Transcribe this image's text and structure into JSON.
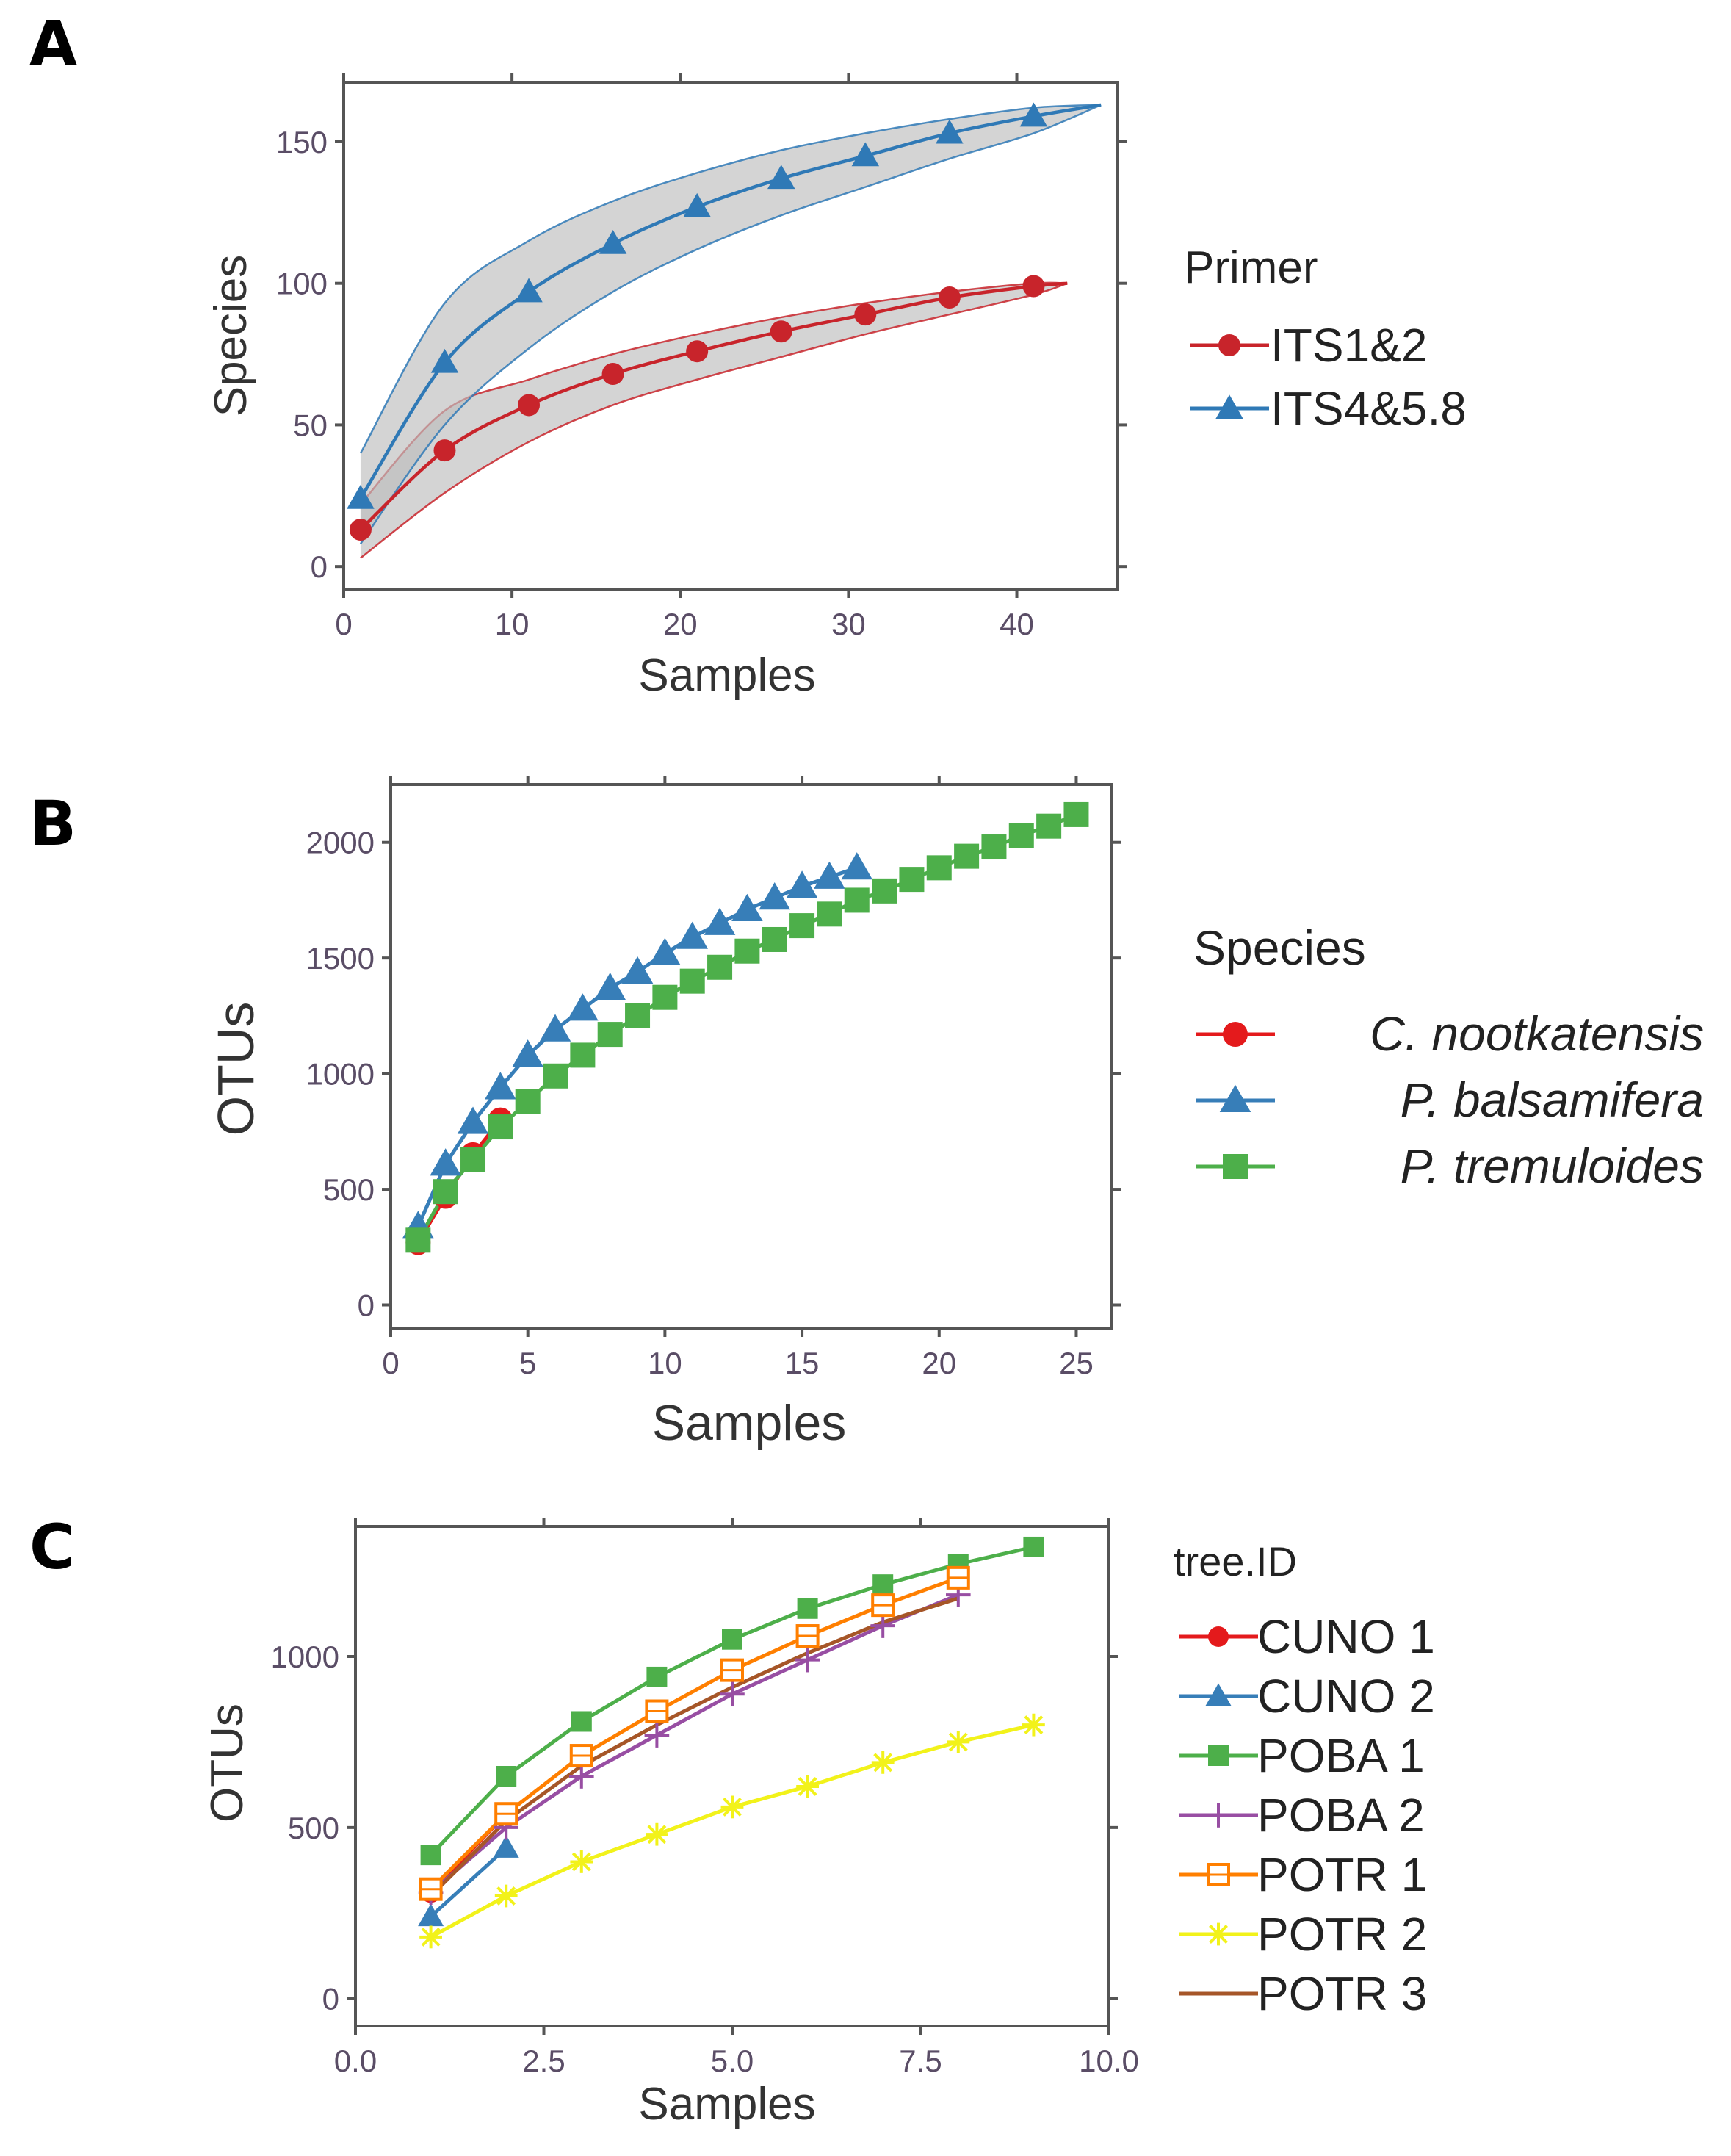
{
  "panels": {
    "a": {
      "label": "A"
    },
    "b": {
      "label": "B"
    },
    "c": {
      "label": "C"
    }
  },
  "chart_data": [
    {
      "panel": "A",
      "type": "line",
      "title": "",
      "xlabel": "Samples",
      "ylabel": "Species",
      "xlim": [
        0,
        46
      ],
      "ylim": [
        -8,
        171
      ],
      "xticks": [
        0,
        10,
        20,
        30,
        40
      ],
      "yticks": [
        0,
        50,
        100,
        150
      ],
      "grid": false,
      "legend": {
        "title": "Primer",
        "position": "right"
      },
      "series": [
        {
          "name": "ITS1&2",
          "color": "#c8242b",
          "marker": "circle",
          "x": [
            1,
            6,
            11,
            16,
            21,
            26,
            31,
            36,
            41
          ],
          "y": [
            13,
            41,
            57,
            68,
            76,
            83,
            89,
            95,
            99
          ],
          "curve_x": [
            1,
            6,
            11,
            16,
            21,
            26,
            31,
            36,
            41,
            43
          ],
          "curve_y": [
            13,
            41,
            57,
            68,
            76,
            83,
            89,
            95,
            99,
            100
          ],
          "band_upper": [
            22,
            55,
            66,
            75,
            82,
            88,
            93,
            97,
            100,
            100
          ],
          "band_lower": [
            3,
            26,
            44,
            57,
            66,
            74,
            82,
            89,
            96,
            100
          ]
        },
        {
          "name": "ITS4&5.8",
          "color": "#2f79b6",
          "marker": "triangle",
          "x": [
            1,
            6,
            11,
            16,
            21,
            26,
            31,
            36,
            41
          ],
          "y": [
            24,
            72,
            97,
            114,
            127,
            137,
            145,
            153,
            159
          ],
          "curve_x": [
            1,
            6,
            11,
            16,
            21,
            26,
            31,
            36,
            41,
            45
          ],
          "curve_y": [
            24,
            72,
            97,
            114,
            127,
            137,
            145,
            153,
            159,
            163
          ],
          "band_upper": [
            40,
            93,
            115,
            129,
            139,
            147,
            153,
            158,
            162,
            163
          ],
          "band_lower": [
            8,
            50,
            77,
            97,
            112,
            124,
            134,
            144,
            153,
            163
          ]
        }
      ]
    },
    {
      "panel": "B",
      "type": "line",
      "title": "",
      "xlabel": "Samples",
      "ylabel": "OTUs",
      "xlim": [
        0,
        26.3
      ],
      "ylim": [
        -100,
        2250
      ],
      "xticks": [
        0,
        5,
        10,
        15,
        20,
        25
      ],
      "yticks": [
        0,
        500,
        1000,
        1500,
        2000
      ],
      "grid": false,
      "legend": {
        "title": "Species",
        "position": "right"
      },
      "series": [
        {
          "name": "C. nootkatensis",
          "color": "#e41a1c",
          "marker": "circle",
          "x": [
            1,
            2,
            3,
            4
          ],
          "y": [
            270,
            470,
            650,
            800
          ]
        },
        {
          "name": "P. balsamifera",
          "color": "#377eb8",
          "marker": "triangle",
          "x": [
            1,
            2,
            3,
            4,
            5,
            6,
            7,
            8,
            9,
            10,
            11,
            12,
            13,
            14,
            15,
            16,
            17
          ],
          "y": [
            340,
            610,
            790,
            940,
            1080,
            1190,
            1280,
            1370,
            1440,
            1520,
            1590,
            1650,
            1710,
            1760,
            1810,
            1850,
            1890
          ]
        },
        {
          "name": "P. tremuloides",
          "color": "#4daf4a",
          "marker": "square",
          "x": [
            1,
            2,
            3,
            4,
            5,
            6,
            7,
            8,
            9,
            10,
            11,
            12,
            13,
            14,
            15,
            16,
            17,
            18,
            19,
            20,
            21,
            22,
            23,
            24,
            25
          ],
          "y": [
            280,
            490,
            630,
            770,
            880,
            990,
            1080,
            1170,
            1250,
            1330,
            1400,
            1460,
            1530,
            1580,
            1640,
            1690,
            1750,
            1790,
            1840,
            1890,
            1940,
            1980,
            2030,
            2070,
            2120
          ]
        }
      ]
    },
    {
      "panel": "C",
      "type": "line",
      "title": "",
      "xlabel": "Samples",
      "ylabel": "OTUs",
      "xlim": [
        0,
        10
      ],
      "ylim": [
        -80,
        1380
      ],
      "xticks": [
        "0.0",
        "2.5",
        "5.0",
        "7.5",
        "10.0"
      ],
      "xtick_values": [
        0,
        2.5,
        5,
        7.5,
        10
      ],
      "yticks": [
        0,
        500,
        1000
      ],
      "grid": false,
      "legend": {
        "title": "tree.ID",
        "position": "right"
      },
      "series": [
        {
          "name": "CUNO 1",
          "color": "#e41a1c",
          "marker": "circle",
          "x": [
            1,
            2
          ],
          "y": [
            310,
            540
          ]
        },
        {
          "name": "CUNO 2",
          "color": "#377eb8",
          "marker": "triangle",
          "x": [
            1,
            2
          ],
          "y": [
            240,
            440
          ]
        },
        {
          "name": "POBA 1",
          "color": "#4daf4a",
          "marker": "square",
          "x": [
            1,
            2,
            3,
            4,
            5,
            6,
            7,
            8,
            9
          ],
          "y": [
            420,
            650,
            810,
            940,
            1050,
            1140,
            1210,
            1270,
            1320
          ]
        },
        {
          "name": "POBA 2",
          "color": "#984ea3",
          "marker": "plus",
          "x": [
            1,
            2,
            3,
            4,
            5,
            6,
            7,
            8
          ],
          "y": [
            310,
            500,
            650,
            770,
            890,
            990,
            1090,
            1180
          ]
        },
        {
          "name": "POTR 1",
          "color": "#ff7f00",
          "marker": "square-open",
          "x": [
            1,
            2,
            3,
            4,
            5,
            6,
            7,
            8
          ],
          "y": [
            320,
            540,
            710,
            840,
            960,
            1060,
            1150,
            1230
          ]
        },
        {
          "name": "POTR 2",
          "color": "#ffff33",
          "marker": "asterisk",
          "x": [
            1,
            2,
            3,
            4,
            5,
            6,
            7,
            8,
            9
          ],
          "y": [
            180,
            300,
            400,
            480,
            560,
            620,
            690,
            750,
            800
          ]
        },
        {
          "name": "POTR 3",
          "color": "#a65628",
          "marker": "none",
          "x": [
            1,
            2,
            3,
            4,
            5,
            6,
            7,
            8
          ],
          "y": [
            300,
            520,
            680,
            800,
            910,
            1010,
            1100,
            1170
          ]
        }
      ]
    }
  ]
}
